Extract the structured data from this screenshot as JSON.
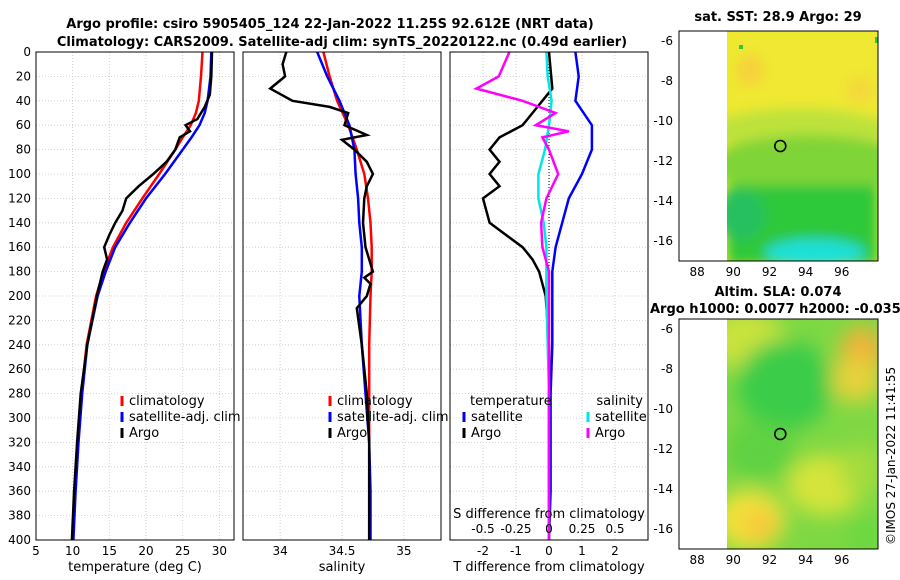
{
  "figure": {
    "title_line1": "Argo profile: csiro 5905405_124 22-Jan-2022 11.25S 92.612E (NRT data)",
    "title_line2": "Climatology: CARS2009. Satellite-adj clim: synTS_20220122.nc (0.49d earlier)",
    "watermark": "©IMOS 27-Jan-2022 11:41:55"
  },
  "colors": {
    "climatology": "#ff0000",
    "satellite": "#0000ff",
    "argo": "#000000",
    "salinity_sat": "#00e5e5",
    "salinity_argo": "#ff00ff"
  },
  "chart_data": [
    {
      "type": "line",
      "id": "temperature",
      "xlabel": "temperature (deg C)",
      "ylabel": "",
      "xlim": [
        5,
        32
      ],
      "ylim": [
        400,
        0
      ],
      "xticks": [
        5,
        10,
        15,
        20,
        25,
        30
      ],
      "yticks": [
        0,
        20,
        40,
        60,
        80,
        100,
        120,
        140,
        160,
        180,
        200,
        220,
        240,
        260,
        280,
        300,
        320,
        340,
        360,
        380,
        400
      ],
      "legend": [
        "climatology",
        "satellite-adj. clim",
        "Argo"
      ],
      "series": [
        {
          "name": "climatology",
          "depth": [
            0,
            20,
            40,
            50,
            60,
            70,
            80,
            100,
            120,
            140,
            160,
            180,
            200,
            240,
            280,
            320,
            360,
            400
          ],
          "values": [
            27.7,
            27.5,
            27.2,
            26.8,
            26.1,
            25.0,
            24.0,
            21.8,
            19.5,
            17.3,
            15.5,
            14.2,
            13.2,
            11.9,
            11.2,
            10.7,
            10.3,
            10.0
          ]
        },
        {
          "name": "satellite-adj. clim",
          "depth": [
            0,
            20,
            40,
            50,
            60,
            70,
            80,
            100,
            120,
            140,
            160,
            180,
            200,
            240,
            280,
            320,
            360,
            400
          ],
          "values": [
            28.9,
            28.8,
            28.4,
            28.0,
            27.3,
            26.2,
            25.0,
            22.6,
            20.0,
            17.8,
            15.8,
            14.5,
            13.4,
            12.0,
            11.3,
            10.8,
            10.4,
            10.1
          ]
        },
        {
          "name": "Argo",
          "depth": [
            0,
            20,
            35,
            45,
            55,
            60,
            65,
            70,
            80,
            90,
            100,
            110,
            120,
            130,
            140,
            150,
            160,
            170,
            180,
            200,
            240,
            280,
            320,
            360,
            400
          ],
          "values": [
            29.0,
            28.9,
            28.7,
            28.0,
            27.0,
            25.4,
            26.0,
            24.6,
            24.0,
            22.8,
            21.0,
            19.0,
            17.3,
            16.8,
            15.8,
            15.0,
            14.3,
            14.7,
            14.1,
            13.3,
            12.0,
            11.1,
            10.6,
            10.2,
            9.9
          ]
        }
      ]
    },
    {
      "type": "line",
      "id": "salinity",
      "xlabel": "salinity",
      "xlim": [
        33.7,
        35.3
      ],
      "ylim": [
        400,
        0
      ],
      "xticks": [
        34,
        34.5,
        35
      ],
      "legend": [
        "climatology",
        "satellite-adj. clim",
        "Argo"
      ],
      "series": [
        {
          "name": "climatology",
          "depth": [
            0,
            20,
            40,
            60,
            80,
            100,
            120,
            140,
            160,
            180,
            200,
            240,
            280,
            320,
            360,
            400
          ],
          "values": [
            34.35,
            34.4,
            34.46,
            34.55,
            34.62,
            34.68,
            34.71,
            34.73,
            34.74,
            34.74,
            34.73,
            34.72,
            34.72,
            34.72,
            34.72,
            34.72
          ]
        },
        {
          "name": "satellite-adj. clim",
          "depth": [
            0,
            20,
            40,
            60,
            80,
            100,
            120,
            140,
            160,
            180,
            200,
            240,
            280,
            320,
            360,
            400
          ],
          "values": [
            34.3,
            34.38,
            34.48,
            34.56,
            34.6,
            34.61,
            34.63,
            34.64,
            34.66,
            34.66,
            34.64,
            34.66,
            34.69,
            34.72,
            34.73,
            34.73
          ]
        },
        {
          "name": "Argo",
          "depth": [
            0,
            10,
            20,
            30,
            40,
            45,
            50,
            60,
            68,
            72,
            80,
            90,
            100,
            110,
            120,
            140,
            160,
            180,
            185,
            190,
            200,
            210,
            240,
            280,
            320,
            360,
            400
          ],
          "values": [
            34.05,
            34.02,
            34.04,
            33.92,
            34.1,
            34.4,
            34.55,
            34.52,
            34.7,
            34.5,
            34.6,
            34.7,
            34.75,
            34.7,
            34.68,
            34.67,
            34.69,
            34.75,
            34.68,
            34.73,
            34.7,
            34.62,
            34.66,
            34.7,
            34.72,
            34.72,
            34.72
          ]
        }
      ]
    },
    {
      "type": "line",
      "id": "difference",
      "xlabel": "T difference from climatology",
      "xlabel_top": "S difference from climatology",
      "xlim": [
        -3,
        3
      ],
      "ylim": [
        400,
        0
      ],
      "xticks": [
        -2,
        -1,
        0,
        1,
        2
      ],
      "xticks_top": [
        "-0.5",
        "-0.25",
        "0",
        "0.25",
        "0.5"
      ],
      "legend_groups": [
        {
          "title": "temperature",
          "items": [
            "satellite",
            "Argo"
          ]
        },
        {
          "title": "salinity",
          "items": [
            "satellite",
            "Argo"
          ]
        }
      ],
      "series": [
        {
          "name": "temperature satellite",
          "depth": [
            0,
            20,
            40,
            60,
            80,
            100,
            120,
            140,
            160,
            180,
            200,
            240,
            280,
            320,
            360,
            400
          ],
          "values": [
            0.8,
            0.9,
            0.8,
            1.3,
            1.3,
            1.0,
            0.6,
            0.4,
            0.2,
            0.1,
            0.1,
            0.1,
            0.05,
            0.05,
            0.05,
            0.0
          ]
        },
        {
          "name": "temperature Argo",
          "depth": [
            0,
            30,
            50,
            60,
            70,
            80,
            90,
            100,
            110,
            120,
            140,
            160,
            170,
            180,
            190,
            200,
            240,
            280,
            320,
            360,
            400
          ],
          "values": [
            0.0,
            0.1,
            -0.5,
            -0.8,
            -1.5,
            -1.8,
            -1.5,
            -1.8,
            -1.5,
            -2.0,
            -1.8,
            -0.8,
            -0.5,
            -0.3,
            -0.2,
            -0.1,
            0.0,
            0.0,
            0.0,
            0.0,
            0.0
          ]
        },
        {
          "name": "salinity satellite",
          "depth": [
            0,
            20,
            40,
            60,
            80,
            100,
            120,
            140,
            160,
            180,
            200,
            240,
            280,
            320,
            360,
            400
          ],
          "values": [
            -0.02,
            -0.01,
            0.02,
            0.0,
            -0.03,
            -0.08,
            -0.08,
            -0.04,
            -0.02,
            -0.02,
            -0.02,
            -0.01,
            0.0,
            0.0,
            0.0,
            0.0
          ]
        },
        {
          "name": "salinity Argo",
          "depth": [
            0,
            20,
            30,
            40,
            50,
            60,
            65,
            70,
            80,
            100,
            120,
            140,
            160,
            180,
            200,
            240,
            280,
            320,
            360,
            400
          ],
          "values": [
            -0.3,
            -0.38,
            -0.55,
            -0.2,
            0.05,
            -0.1,
            0.15,
            -0.05,
            0.0,
            0.07,
            -0.02,
            -0.06,
            -0.05,
            0.0,
            0.0,
            0.0,
            0.0,
            0.0,
            0.0,
            0.0
          ]
        }
      ]
    },
    {
      "type": "heatmap",
      "id": "sst_map",
      "title": "sat. SST: 28.9 Argo: 29",
      "xlim": [
        87,
        98
      ],
      "ylim": [
        -17,
        -5.5
      ],
      "xticks": [
        88,
        90,
        92,
        94,
        96
      ],
      "yticks": [
        -6,
        -8,
        -10,
        -12,
        -14,
        -16
      ],
      "profile_location": [
        92.6,
        -11.25
      ]
    },
    {
      "type": "heatmap",
      "id": "sla_map",
      "title_line1": "Altim. SLA: 0.074",
      "title_line2": "Argo h1000: 0.0077 h2000: -0.035",
      "xlim": [
        87,
        98
      ],
      "ylim": [
        -17,
        -5.5
      ],
      "xticks": [
        88,
        90,
        92,
        94,
        96
      ],
      "yticks": [
        -6,
        -8,
        -10,
        -12,
        -14,
        -16
      ],
      "profile_location": [
        92.6,
        -11.25
      ]
    }
  ]
}
